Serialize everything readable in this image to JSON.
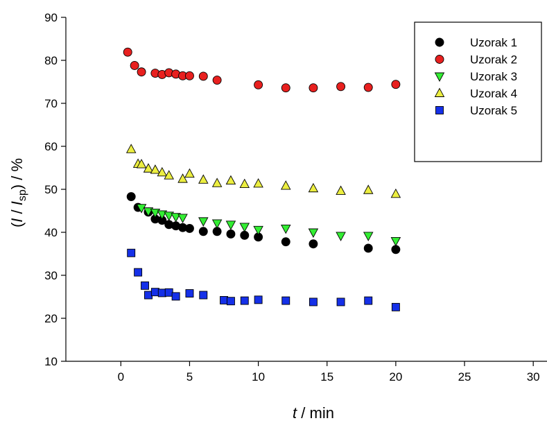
{
  "chart_data": {
    "type": "scatter",
    "title": "",
    "xlabel": {
      "var": "t",
      "rest": " / min"
    },
    "ylabel": {
      "open": "(",
      "var1": "I",
      "sep": " / ",
      "var2": "I",
      "sub": "sp",
      "close": ") / %"
    },
    "xlim": [
      -4,
      31
    ],
    "ylim": [
      10,
      90
    ],
    "xticks": [
      0,
      5,
      10,
      15,
      20,
      25,
      30
    ],
    "yticks": [
      10,
      20,
      30,
      40,
      50,
      60,
      70,
      80,
      90
    ],
    "grid": false,
    "legend_position": "top-right",
    "series": [
      {
        "name": "Uzorak 1",
        "marker": "circle",
        "color": "#000000",
        "x": [
          0.75,
          1.25,
          2.0,
          2.5,
          3.0,
          3.5,
          4.0,
          4.5,
          5.0,
          6.0,
          7.0,
          8.0,
          9.0,
          10.0,
          12.0,
          14.0,
          18.0,
          20.0
        ],
        "y": [
          48.3,
          45.8,
          44.7,
          43.1,
          42.8,
          41.8,
          41.5,
          41.1,
          40.9,
          40.2,
          40.2,
          39.6,
          39.3,
          38.9,
          37.8,
          37.3,
          36.3,
          36.0
        ]
      },
      {
        "name": "Uzorak 2",
        "marker": "circle",
        "color": "#e8201f",
        "x": [
          0.5,
          1.0,
          1.5,
          2.5,
          3.0,
          3.5,
          4.0,
          4.5,
          5.0,
          6.0,
          7.0,
          10.0,
          12.0,
          14.0,
          16.0,
          18.0,
          20.0
        ],
        "y": [
          81.9,
          78.8,
          77.3,
          77.0,
          76.7,
          77.1,
          76.8,
          76.4,
          76.4,
          76.3,
          75.4,
          74.3,
          73.6,
          73.6,
          73.9,
          73.7,
          74.4
        ]
      },
      {
        "name": "Uzorak 3",
        "marker": "triangle-down",
        "color": "#33ee33",
        "x": [
          1.5,
          2.0,
          2.5,
          3.0,
          3.5,
          4.0,
          4.5,
          6.0,
          7.0,
          8.0,
          9.0,
          10.0,
          12.0,
          14.0,
          16.0,
          18.0,
          20.0
        ],
        "y": [
          45.7,
          44.9,
          44.6,
          44.2,
          43.9,
          43.6,
          43.4,
          42.6,
          42.1,
          41.8,
          41.3,
          40.6,
          40.9,
          40.0,
          39.2,
          39.2,
          38.0
        ]
      },
      {
        "name": "Uzorak 4",
        "marker": "triangle-up",
        "color": "#ecee40",
        "x": [
          0.75,
          1.25,
          1.5,
          2.0,
          2.5,
          3.0,
          3.5,
          4.5,
          5.0,
          6.0,
          7.0,
          8.0,
          9.0,
          10.0,
          12.0,
          14.0,
          16.0,
          18.0,
          20.0
        ],
        "y": [
          59.3,
          55.9,
          55.8,
          54.8,
          54.5,
          53.9,
          53.2,
          52.4,
          53.6,
          52.2,
          51.4,
          52.0,
          51.2,
          51.3,
          50.8,
          50.2,
          49.6,
          49.8,
          48.9
        ]
      },
      {
        "name": "Uzorak 5",
        "marker": "square",
        "color": "#1530e8",
        "x": [
          0.75,
          1.25,
          1.75,
          2.0,
          2.5,
          3.0,
          3.5,
          4.0,
          5.0,
          6.0,
          7.5,
          8.0,
          9.0,
          10.0,
          12.0,
          14.0,
          16.0,
          18.0,
          20.0
        ],
        "y": [
          35.2,
          30.7,
          27.6,
          25.4,
          26.1,
          25.9,
          26.0,
          25.1,
          25.8,
          25.4,
          24.2,
          24.0,
          24.1,
          24.3,
          24.1,
          23.8,
          23.8,
          24.1,
          22.6
        ]
      }
    ]
  }
}
